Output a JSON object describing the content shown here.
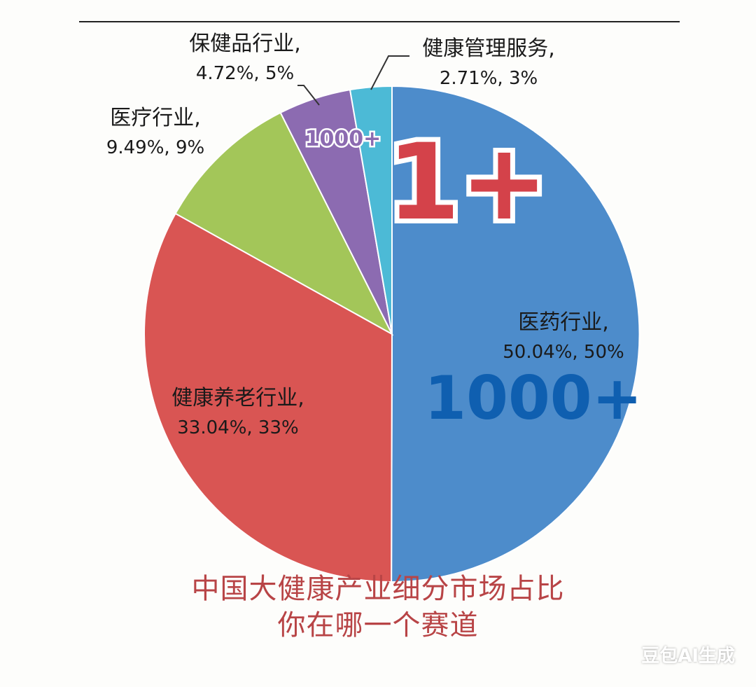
{
  "chart_data": {
    "type": "pie",
    "slices": [
      {
        "label": "医药行业,",
        "value": 50.04,
        "pct_label": "50.04%, 50%",
        "color": "#4d8ccb"
      },
      {
        "label": "健康养老行业,",
        "value": 33.04,
        "pct_label": "33.04%, 33%",
        "color": "#d95553"
      },
      {
        "label": "医疗行业,",
        "value": 9.49,
        "pct_label": "9.49%, 9%",
        "color": "#a3c659"
      },
      {
        "label": "保健品行业,",
        "value": 4.72,
        "pct_label": "4.72%, 5%",
        "color": "#8c6bb1"
      },
      {
        "label": "健康管理服务,",
        "value": 2.71,
        "pct_label": "2.71%, 3%",
        "color": "#4cbad6"
      }
    ],
    "annotations": [
      "1+",
      "1000+",
      "1000+"
    ]
  },
  "title_line1": "中国大健康产业细分市场占比",
  "title_line2": "你在哪一个赛道",
  "watermark": "豆包AI生成"
}
